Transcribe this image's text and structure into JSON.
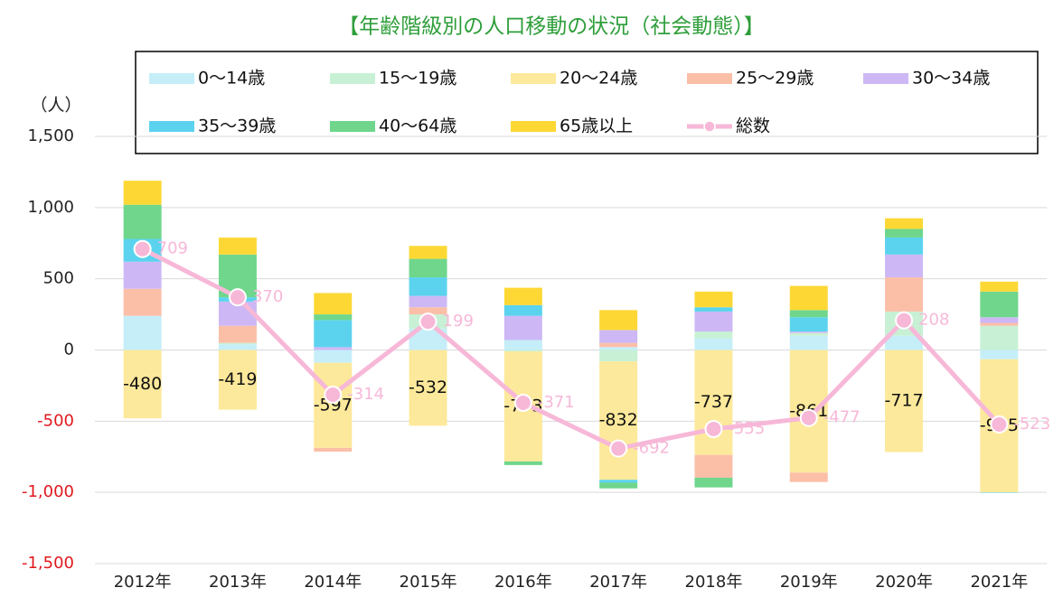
{
  "chart_data": {
    "type": "stacked-bar-line",
    "title": "【年齢階級別の人口移動の状況（社会動態）】",
    "y_label": "（人）",
    "categories": [
      "2012年",
      "2013年",
      "2014年",
      "2015年",
      "2016年",
      "2017年",
      "2018年",
      "2019年",
      "2020年",
      "2021年"
    ],
    "series": [
      {
        "name": "0～14歳",
        "type": "bar",
        "color": "#c5eef8",
        "values": [
          240,
          40,
          -90,
          150,
          70,
          20,
          80,
          100,
          100,
          -65
        ]
      },
      {
        "name": "15～19歳",
        "type": "bar",
        "color": "#c8f0d5",
        "values": [
          0,
          10,
          0,
          100,
          -10,
          -80,
          50,
          20,
          170,
          170
        ]
      },
      {
        "name": "20～24歳",
        "type": "bar",
        "color": "#fde99b",
        "labels": true,
        "values": [
          -480,
          -419,
          -597,
          -532,
          -773,
          -832,
          -737,
          -861,
          -717,
          -935
        ]
      },
      {
        "name": "25～29歳",
        "type": "bar",
        "color": "#fbbfa8",
        "values": [
          190,
          120,
          -27,
          50,
          0,
          30,
          -160,
          -66,
          240,
          20
        ]
      },
      {
        "name": "30～34歳",
        "type": "bar",
        "color": "#cdb8f5",
        "values": [
          190,
          170,
          20,
          80,
          170,
          90,
          140,
          10,
          160,
          40
        ]
      },
      {
        "name": "35～39歳",
        "type": "bar",
        "color": "#5bd3ee",
        "values": [
          160,
          30,
          190,
          130,
          75,
          -20,
          30,
          100,
          120,
          -3
        ]
      },
      {
        "name": "40～64歳",
        "type": "bar",
        "color": "#6fd68c",
        "values": [
          240,
          300,
          40,
          130,
          -25,
          -40,
          -68,
          50,
          60,
          180
        ]
      },
      {
        "name": "65歳以上",
        "type": "bar",
        "color": "#fdd835",
        "values": [
          169,
          119,
          150,
          91,
          122,
          140,
          110,
          170,
          75,
          70
        ]
      },
      {
        "name": "総数",
        "type": "line",
        "color": "#f7b8d8",
        "labels": true,
        "values": [
          709,
          370,
          -314,
          199,
          -371,
          -692,
          -555,
          -477,
          208,
          -523
        ]
      }
    ],
    "ylim": [
      -1500,
      1500
    ],
    "yticks": [
      {
        "value": -1500,
        "label": "-1,500"
      },
      {
        "value": -1000,
        "label": "-1,000"
      },
      -500,
      0,
      500,
      {
        "value": 1000,
        "label": "1,000"
      },
      {
        "value": 1500,
        "label": "1,500"
      }
    ],
    "grid": true,
    "legend": "top"
  }
}
